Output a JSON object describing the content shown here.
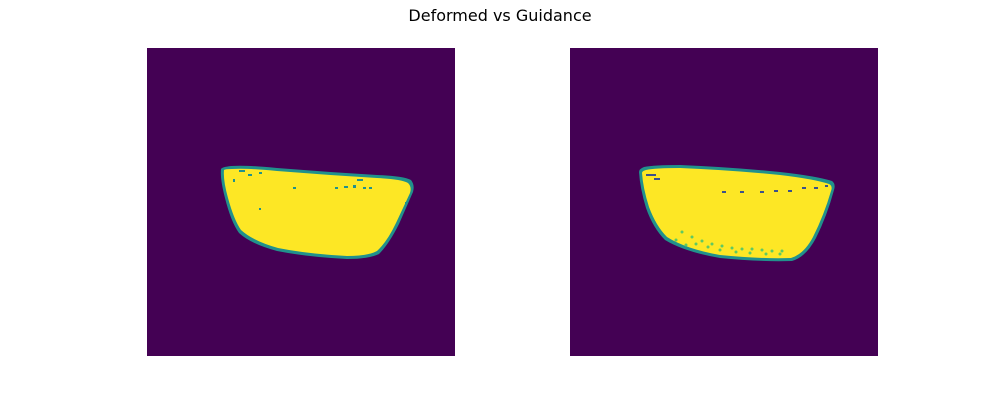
{
  "figure": {
    "title": "Deformed vs Guidance"
  },
  "colors": {
    "background": "#440154",
    "mask_fill": "#fde725",
    "mask_edge": "#21918c",
    "mask_edge_light": "#5ec962",
    "mask_edge_dark": "#3b528b"
  },
  "panels": [
    {
      "id": "deformed",
      "image": "deformed-mask-image"
    },
    {
      "id": "guidance",
      "image": "guidance-mask-image"
    }
  ]
}
